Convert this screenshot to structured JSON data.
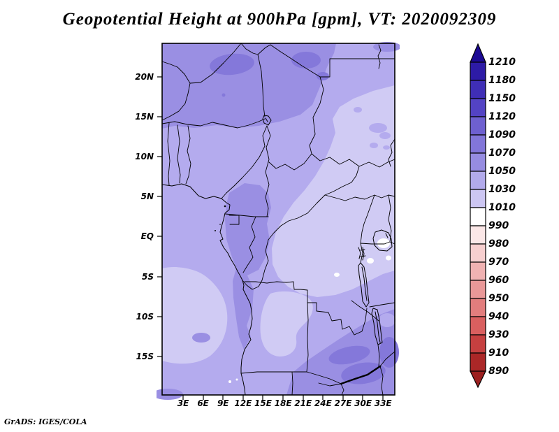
{
  "title": "Geopotential Height at 900hPa [gpm], VT: 2020092309",
  "attribution": "GrADS: IGES/COLA",
  "axes": {
    "lat_labels": [
      "20N",
      "15N",
      "10N",
      "5N",
      "EQ",
      "5S",
      "10S",
      "15S"
    ],
    "lon_labels": [
      "3E",
      "6E",
      "9E",
      "12E",
      "15E",
      "18E",
      "21E",
      "24E",
      "27E",
      "30E",
      "33E"
    ]
  },
  "colorbar": {
    "levels": [
      "1210",
      "1180",
      "1150",
      "1120",
      "1090",
      "1070",
      "1050",
      "1030",
      "1010",
      "990",
      "980",
      "970",
      "960",
      "950",
      "940",
      "930",
      "910",
      "890"
    ],
    "colors": [
      "#1c0a94",
      "#2d1ba6",
      "#3f2eb6",
      "#5343c4",
      "#6e60d0",
      "#8276d9",
      "#968ce1",
      "#b2aaeb",
      "#ccc6f2",
      "#ffffff",
      "#fbe7e7",
      "#f7cfcf",
      "#f0b2b2",
      "#e99898",
      "#e27d7d",
      "#d95f5f",
      "#c64040",
      "#ab2727",
      "#9c2020"
    ]
  },
  "chart_data": {
    "type": "heatmap",
    "title": "Geopotential Height at 900hPa [gpm], VT: 2020092309",
    "xlabel": "",
    "ylabel": "",
    "x_tick_labels": [
      "3E",
      "6E",
      "9E",
      "12E",
      "15E",
      "18E",
      "21E",
      "24E",
      "27E",
      "30E",
      "33E"
    ],
    "y_tick_labels": [
      "20N",
      "15N",
      "10N",
      "5N",
      "EQ",
      "5S",
      "10S",
      "15S"
    ],
    "x_range_deg_east": [
      0,
      35
    ],
    "y_range_deg_lat": [
      -20,
      24
    ],
    "units": "gpm",
    "legend_position": "right",
    "legend_levels": [
      1210,
      1180,
      1150,
      1120,
      1090,
      1070,
      1050,
      1030,
      1010,
      990,
      980,
      970,
      960,
      950,
      940,
      930,
      910,
      890
    ],
    "legend_colors": [
      "#1c0a94",
      "#2d1ba6",
      "#3f2eb6",
      "#5343c4",
      "#6e60d0",
      "#8276d9",
      "#968ce1",
      "#b2aaeb",
      "#ccc6f2",
      "#ffffff",
      "#fbe7e7",
      "#f7cfcf",
      "#f0b2b2",
      "#e99898",
      "#e27d7d",
      "#d95f5f",
      "#c64040",
      "#ab2727",
      "#9c2020"
    ],
    "observed_value_range_gpm": [
      990,
      1120
    ],
    "pattern_notes": "Filled-contour map over central Africa with country borders. Values 1050-1090 gpm (darker purple) across the Sahel band in the north with 1070-1090 maxima over Niger and NE Chad, 1050-1070 along the Cameroon/Gabon coast and SW Atlantic corner, 1010-1030 (pale lavender) over Sudan, South Sudan and the central Congo basin, small 990-1010 (white) patches near Lake Victoria, and 1050-1090 gpm (darker purple) over the Zambia/Zimbabwe highlands in the southeast."
  }
}
